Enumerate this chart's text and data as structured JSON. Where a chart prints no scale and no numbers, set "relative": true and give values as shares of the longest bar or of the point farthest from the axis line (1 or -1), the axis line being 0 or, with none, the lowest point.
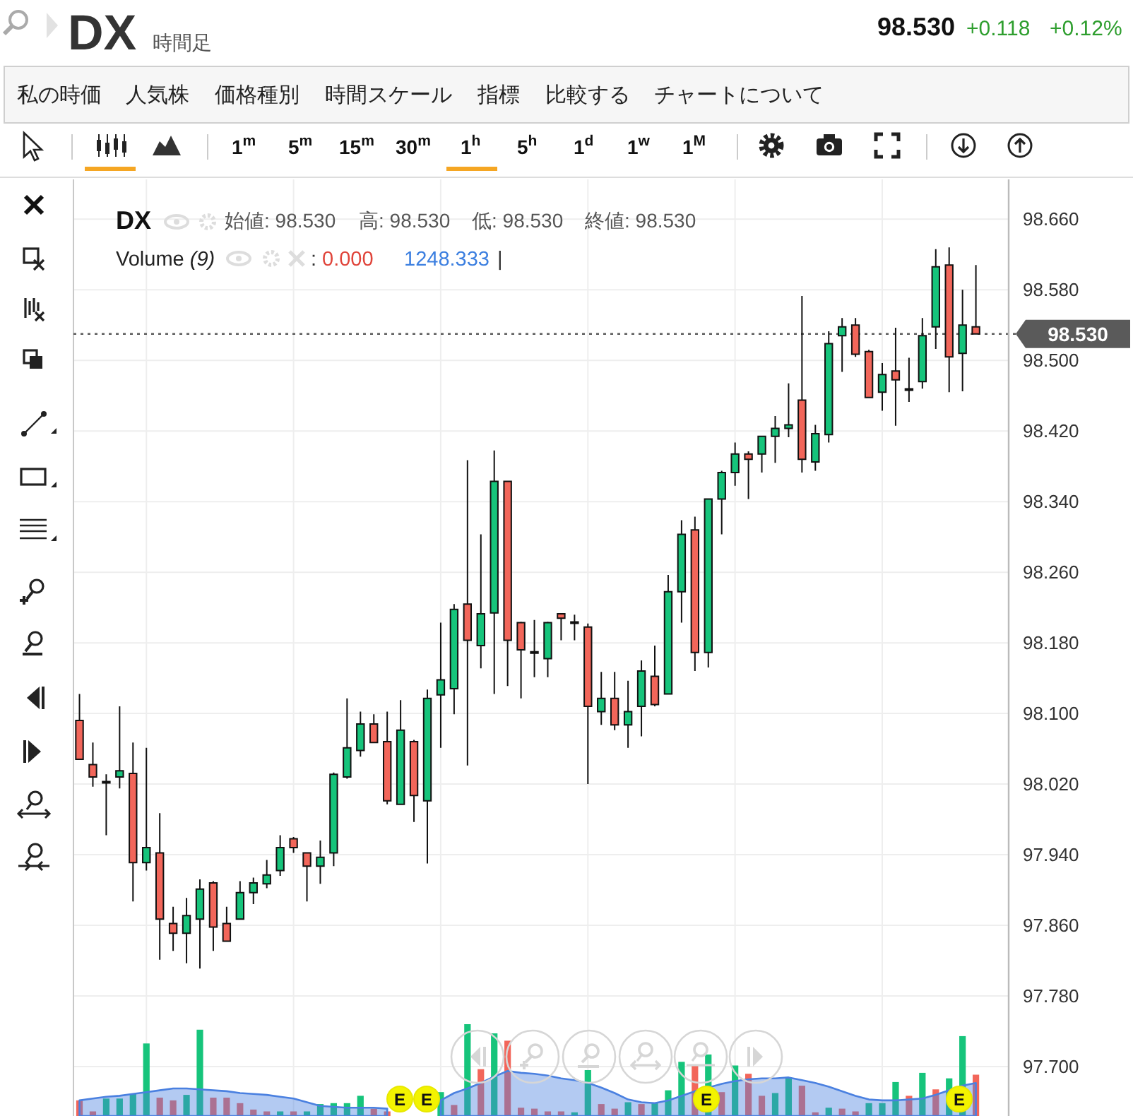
{
  "chart_data": [
    {
      "type": "candlestick",
      "title": "DX",
      "subtitle": "時間足",
      "categories": [
        null,
        null,
        null,
        null,
        null,
        null,
        null,
        null,
        null,
        null,
        null,
        null,
        null,
        null,
        null,
        null,
        null,
        null,
        null,
        null,
        null,
        null,
        null,
        null,
        null,
        null,
        null,
        null,
        null,
        null,
        null,
        null,
        null,
        null,
        null,
        null,
        null,
        null,
        null,
        null,
        null,
        null,
        null,
        null,
        null,
        null,
        null,
        null,
        null,
        null,
        null,
        null,
        null,
        null,
        null,
        null,
        null,
        null,
        null,
        null,
        null,
        null,
        null,
        null,
        null,
        null,
        null,
        null
      ],
      "ohlc": [
        [
          98.092,
          98.122,
          98.048,
          98.048
        ],
        [
          98.042,
          98.067,
          98.017,
          98.028
        ],
        [
          98.022,
          98.031,
          97.962,
          98.022
        ],
        [
          98.028,
          98.108,
          98.015,
          98.035
        ],
        [
          98.032,
          98.067,
          97.887,
          97.931
        ],
        [
          97.931,
          98.061,
          97.922,
          97.948
        ],
        [
          97.942,
          97.987,
          97.821,
          97.867
        ],
        [
          97.862,
          97.881,
          97.831,
          97.851
        ],
        [
          97.851,
          97.891,
          97.817,
          97.871
        ],
        [
          97.867,
          97.912,
          97.811,
          97.901
        ],
        [
          97.908,
          97.91,
          97.831,
          97.858
        ],
        [
          97.862,
          97.881,
          97.842,
          97.842
        ],
        [
          97.867,
          97.91,
          97.867,
          97.897
        ],
        [
          97.897,
          97.914,
          97.884,
          97.908
        ],
        [
          97.907,
          97.934,
          97.902,
          97.917
        ],
        [
          97.922,
          97.962,
          97.916,
          97.948
        ],
        [
          97.958,
          97.96,
          97.942,
          97.948
        ],
        [
          97.942,
          97.942,
          97.887,
          97.927
        ],
        [
          97.927,
          97.956,
          97.907,
          97.937
        ],
        [
          97.942,
          98.033,
          97.927,
          98.031
        ],
        [
          98.028,
          98.117,
          98.026,
          98.061
        ],
        [
          98.058,
          98.102,
          98.051,
          98.088
        ],
        [
          98.088,
          98.099,
          98.067,
          98.067
        ],
        [
          98.068,
          98.102,
          97.997,
          98.001
        ],
        [
          97.997,
          98.115,
          97.997,
          98.081
        ],
        [
          98.068,
          98.07,
          97.977,
          98.007
        ],
        [
          98.001,
          98.127,
          97.93,
          98.117
        ],
        [
          98.121,
          98.203,
          98.061,
          98.138
        ],
        [
          98.128,
          98.224,
          98.099,
          98.218
        ],
        [
          98.224,
          98.387,
          98.041,
          98.183
        ],
        [
          98.177,
          98.303,
          98.151,
          98.213
        ],
        [
          98.214,
          98.398,
          98.122,
          98.363
        ],
        [
          98.363,
          98.363,
          98.131,
          98.183
        ],
        [
          98.203,
          98.204,
          98.117,
          98.172
        ],
        [
          98.169,
          98.206,
          98.141,
          98.169
        ],
        [
          98.162,
          98.204,
          98.141,
          98.203
        ],
        [
          98.213,
          98.213,
          98.183,
          98.208
        ],
        [
          98.203,
          98.212,
          98.183,
          98.203
        ],
        [
          98.198,
          98.202,
          98.02,
          98.108
        ],
        [
          98.102,
          98.147,
          98.087,
          98.117
        ],
        [
          98.117,
          98.147,
          98.081,
          98.087
        ],
        [
          98.087,
          98.137,
          98.061,
          98.102
        ],
        [
          98.108,
          98.16,
          98.074,
          98.148
        ],
        [
          98.142,
          98.177,
          98.108,
          98.11
        ],
        [
          98.122,
          98.257,
          98.122,
          98.238
        ],
        [
          98.238,
          98.319,
          98.203,
          98.303
        ],
        [
          98.308,
          98.323,
          98.148,
          98.169
        ],
        [
          98.169,
          98.343,
          98.152,
          98.343
        ],
        [
          98.343,
          98.375,
          98.303,
          98.373
        ],
        [
          98.373,
          98.407,
          98.358,
          98.394
        ],
        [
          98.394,
          98.397,
          98.343,
          98.388
        ],
        [
          98.394,
          98.414,
          98.373,
          98.414
        ],
        [
          98.414,
          98.437,
          98.384,
          98.423
        ],
        [
          98.423,
          98.474,
          98.413,
          98.427
        ],
        [
          98.455,
          98.573,
          98.373,
          98.388
        ],
        [
          98.385,
          98.427,
          98.375,
          98.417
        ],
        [
          98.416,
          98.533,
          98.407,
          98.519
        ],
        [
          98.528,
          98.548,
          98.487,
          98.538
        ],
        [
          98.54,
          98.548,
          98.504,
          98.507
        ],
        [
          98.51,
          98.512,
          98.458,
          98.458
        ],
        [
          98.464,
          98.497,
          98.443,
          98.484
        ],
        [
          98.488,
          98.537,
          98.426,
          98.478
        ],
        [
          98.467,
          98.503,
          98.453,
          98.467
        ],
        [
          98.476,
          98.548,
          98.468,
          98.528
        ],
        [
          98.538,
          98.626,
          98.513,
          98.606
        ],
        [
          98.608,
          98.628,
          98.464,
          98.504
        ],
        [
          98.508,
          98.58,
          98.465,
          98.54
        ],
        [
          98.538,
          98.608,
          98.53,
          98.53
        ]
      ],
      "colors": [
        "#f2665a",
        "#f2665a",
        "#000000",
        "#16c47b",
        "#f2665a",
        "#16c47b",
        "#f2665a",
        "#f2665a",
        "#16c47b",
        "#16c47b",
        "#f2665a",
        "#f2665a",
        "#16c47b",
        "#16c47b",
        "#16c47b",
        "#16c47b",
        "#f2665a",
        "#f2665a",
        "#16c47b",
        "#16c47b",
        "#16c47b",
        "#16c47b",
        "#f2665a",
        "#f2665a",
        "#16c47b",
        "#f2665a",
        "#16c47b",
        "#16c47b",
        "#16c47b",
        "#f2665a",
        "#16c47b",
        "#16c47b",
        "#f2665a",
        "#f2665a",
        "#000000",
        "#16c47b",
        "#f2665a",
        "#000000",
        "#f2665a",
        "#16c47b",
        "#f2665a",
        "#16c47b",
        "#16c47b",
        "#f2665a",
        "#16c47b",
        "#16c47b",
        "#f2665a",
        "#16c47b",
        "#16c47b",
        "#16c47b",
        "#f2665a",
        "#16c47b",
        "#16c47b",
        "#16c47b",
        "#f2665a",
        "#16c47b",
        "#16c47b",
        "#16c47b",
        "#f2665a",
        "#f2665a",
        "#16c47b",
        "#f2665a",
        "#000000",
        "#16c47b",
        "#16c47b",
        "#f2665a",
        "#16c47b",
        "#f2665a"
      ],
      "ylim": [
        97.644,
        98.705
      ],
      "yticks": [
        {
          "value": 97.7,
          "label": "97.700"
        },
        {
          "value": 97.78,
          "label": "97.780"
        },
        {
          "value": 97.86,
          "label": "97.860"
        },
        {
          "value": 97.94,
          "label": "97.940"
        },
        {
          "value": 98.02,
          "label": "98.020"
        },
        {
          "value": 98.1,
          "label": "98.100"
        },
        {
          "value": 98.18,
          "label": "98.180"
        },
        {
          "value": 98.26,
          "label": "98.260"
        },
        {
          "value": 98.34,
          "label": "98.340"
        },
        {
          "value": 98.42,
          "label": "98.420"
        },
        {
          "value": 98.5,
          "label": "98.500"
        },
        {
          "value": 98.58,
          "label": "98.580"
        },
        {
          "value": 98.66,
          "label": "98.660"
        }
      ],
      "grid": true,
      "ref_lines": [
        {
          "axis": "y",
          "value": 98.53,
          "label": "98.530",
          "line_style": "dotted",
          "color": "#5a5a5a"
        }
      ],
      "annotations": [
        "98.530",
        "+0.118",
        "+0.12%",
        "私の時価",
        "人気株",
        "価格種別",
        "時間スケール",
        "指標",
        "比較する",
        "チャートについて",
        "1$^{m}$",
        "5$^{m}$",
        "15$^{m}$",
        "30$^{m}$",
        "1$^{h}$",
        "5$^{h}$",
        "1$^{d}$",
        "1$^{w}$",
        "1$^{M}$",
        "DX",
        "始値: 98.530",
        "高: 98.530",
        "低: 98.530",
        "終値: 98.530"
      ]
    },
    {
      "type": "bar",
      "relative": true,
      "categories": [
        null,
        null,
        null,
        null,
        null,
        null,
        null,
        null,
        null,
        null,
        null,
        null,
        null,
        null,
        null,
        null,
        null,
        null,
        null,
        null,
        null,
        null,
        null,
        null,
        null,
        null,
        null,
        null,
        null,
        null,
        null,
        null,
        null,
        null,
        null,
        null,
        null,
        null,
        null,
        null,
        null,
        null,
        null,
        null,
        null,
        null,
        null,
        null,
        null,
        null,
        null,
        null,
        null,
        null,
        null,
        null,
        null,
        null,
        null,
        null,
        null,
        null,
        null,
        null,
        null,
        null,
        null,
        null
      ],
      "series": [
        {
          "type": "bar",
          "values": [
            0.17,
            0.05,
            0.19,
            0.19,
            0.24,
            0.79,
            0.2,
            0.17,
            0.23,
            0.94,
            0.2,
            0.2,
            0.14,
            0.07,
            0.05,
            0.05,
            0.05,
            0.05,
            0.13,
            0.14,
            0.14,
            0.22,
            0.08,
            0.05,
            null,
            null,
            null,
            0.26,
            0.12,
            1.0,
            0.51,
            0.9,
            0.82,
            0.09,
            0.08,
            0.05,
            0.05,
            0.04,
            0.5,
            0.13,
            0.08,
            0.15,
            0.13,
            0.14,
            0.28,
            0.59,
            0.56,
            0.67,
            0.26,
            0.55,
            0.46,
            0.22,
            0.25,
            0.41,
            0.33,
            0.04,
            0.09,
            0.08,
            0.05,
            0.14,
            0.14,
            0.37,
            0.22,
            0.47,
            0.29,
            0.41,
            0.87,
            0.45
          ],
          "colors": [
            "#f2665a",
            "#f2665a",
            "#16c47b",
            "#16c47b",
            "#16c47b",
            "#16c47b",
            "#f2665a",
            "#f2665a",
            "#16c47b",
            "#16c47b",
            "#f2665a",
            "#f2665a",
            "#f2665a",
            "#f2665a",
            "#f2665a",
            "#16c47b",
            "#f2665a",
            "#16c47b",
            "#16c47b",
            "#16c47b",
            "#16c47b",
            "#16c47b",
            "#f2665a",
            "#f2665a",
            null,
            null,
            null,
            "#16c47b",
            "#f2665a",
            "#16c47b",
            "#f2665a",
            "#16c47b",
            "#f2665a",
            "#f2665a",
            "#f2665a",
            "#f2665a",
            "#f2665a",
            "#16c47b",
            "#16c47b",
            "#f2665a",
            "#f2665a",
            "#16c47b",
            "#f2665a",
            "#16c47b",
            "#16c47b",
            "#16c47b",
            "#f2665a",
            "#16c47b",
            "#f2665a",
            "#16c47b",
            "#f2665a",
            "#f2665a",
            "#16c47b",
            "#16c47b",
            "#f2665a",
            "#f2665a",
            "#16c47b",
            "#f2665a",
            "#f2665a",
            "#16c47b",
            "#16c47b",
            "#16c47b",
            "#f2665a",
            "#16c47b",
            "#f2665a",
            "#16c47b",
            "#16c47b",
            "#f2665a"
          ]
        },
        {
          "type": "area",
          "color": "#4a80e0",
          "values": [
            0.17,
            0.19,
            0.21,
            0.22,
            0.24,
            0.26,
            0.28,
            0.3,
            0.3,
            0.29,
            0.28,
            0.27,
            0.25,
            0.24,
            0.23,
            0.21,
            0.19,
            0.15,
            0.11,
            0.1,
            0.09,
            0.09,
            0.09,
            0.08,
            null,
            null,
            null,
            0.17,
            0.25,
            0.3,
            0.36,
            0.43,
            0.49,
            0.47,
            0.46,
            0.44,
            0.41,
            0.39,
            0.36,
            0.31,
            0.25,
            0.18,
            0.15,
            0.14,
            0.17,
            0.22,
            0.27,
            0.31,
            0.35,
            0.38,
            0.4,
            0.41,
            0.41,
            0.42,
            0.39,
            0.36,
            0.32,
            0.27,
            0.22,
            0.18,
            0.17,
            0.17,
            0.18,
            0.19,
            0.23,
            0.28,
            0.33,
            0.36
          ]
        }
      ],
      "annotations": [
        "Volume (9)",
        ":",
        "0.000",
        "1248.333",
        "|",
        "E",
        "E",
        "E",
        "E"
      ]
    }
  ]
}
